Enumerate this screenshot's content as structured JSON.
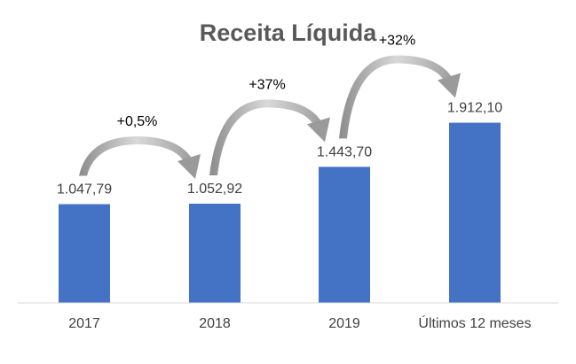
{
  "chart_data": {
    "type": "bar",
    "title": "Receita Líquida",
    "categories": [
      "2017",
      "2018",
      "2019",
      "Últimos 12 meses"
    ],
    "values": [
      1047.79,
      1052.92,
      1443.7,
      1912.1
    ],
    "value_labels": [
      "1.047,79",
      "1.052,92",
      "1.443,70",
      "1.912,10"
    ],
    "growth_annotations": [
      {
        "from": 0,
        "to": 1,
        "label": "+0,5%"
      },
      {
        "from": 1,
        "to": 2,
        "label": "+37%"
      },
      {
        "from": 2,
        "to": 3,
        "label": "+32%"
      }
    ],
    "bar_color": "#4472C4",
    "arrow_color": "#A6A6A6",
    "grid": false,
    "legend": "none",
    "ylim": [
      0,
      2100
    ]
  }
}
